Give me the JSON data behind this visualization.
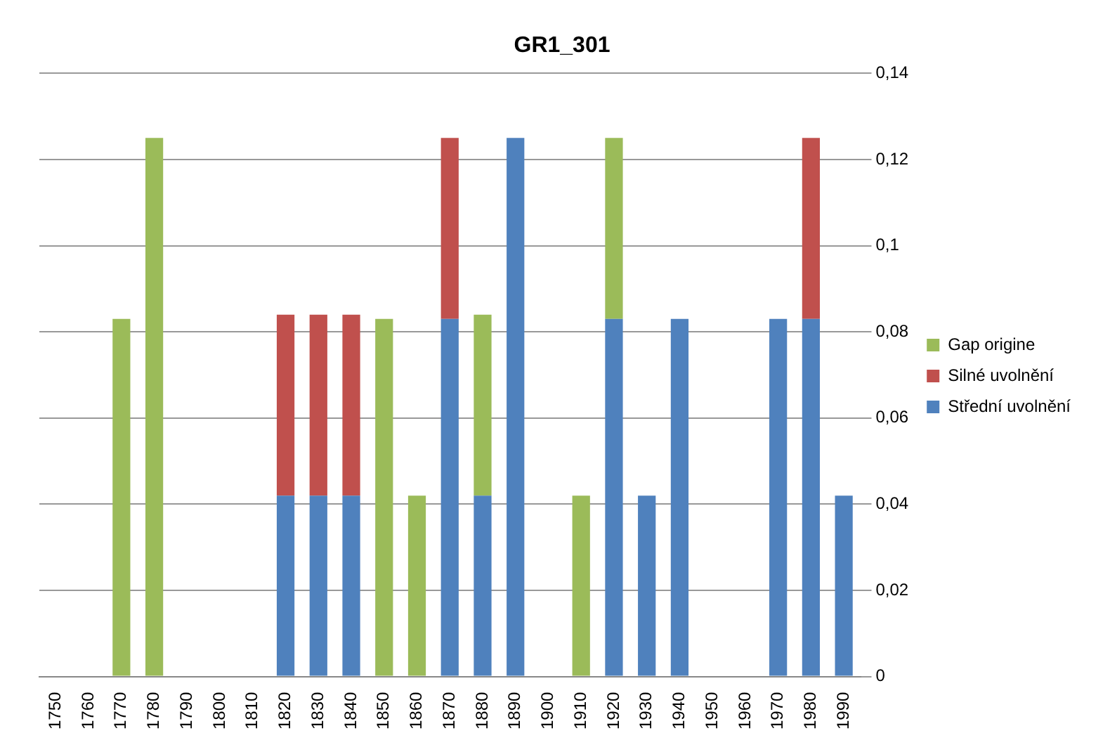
{
  "chart_data": {
    "type": "bar",
    "title": "GR1_301",
    "stacked": true,
    "categories": [
      "1750",
      "1760",
      "1770",
      "1780",
      "1790",
      "1800",
      "1810",
      "1820",
      "1830",
      "1840",
      "1850",
      "1860",
      "1870",
      "1880",
      "1890",
      "1900",
      "1910",
      "1920",
      "1930",
      "1940",
      "1950",
      "1960",
      "1970",
      "1980",
      "1990"
    ],
    "series": [
      {
        "name": "Střední uvolnění",
        "color": "#4f81bd",
        "values": [
          0,
          0,
          0,
          0,
          0,
          0,
          0,
          0.042,
          0.042,
          0.042,
          0,
          0,
          0.083,
          0.042,
          0.125,
          0,
          0,
          0.083,
          0.042,
          0.083,
          0,
          0,
          0.083,
          0.083,
          0.042
        ]
      },
      {
        "name": "Silné uvolnění",
        "color": "#c0504d",
        "values": [
          0,
          0,
          0,
          0,
          0,
          0,
          0,
          0.042,
          0.042,
          0.042,
          0,
          0,
          0.042,
          0,
          0,
          0,
          0,
          0,
          0,
          0,
          0,
          0,
          0,
          0.042,
          0
        ]
      },
      {
        "name": "Gap origine",
        "color": "#9bbb59",
        "values": [
          0,
          0,
          0.083,
          0.125,
          0,
          0,
          0,
          0,
          0,
          0,
          0.083,
          0.042,
          0,
          0.042,
          0,
          0,
          0.042,
          0.042,
          0,
          0,
          0,
          0,
          0,
          0,
          0
        ]
      }
    ],
    "ylim": [
      0,
      0.14
    ],
    "yticks": [
      0,
      {
        "value": 0.02,
        "label": "0,02"
      },
      {
        "value": 0.04,
        "label": "0,04"
      },
      {
        "value": 0.06,
        "label": "0,06"
      },
      {
        "value": 0.08,
        "label": "0,08"
      },
      {
        "value": 0.1,
        "label": "0,1"
      },
      {
        "value": 0.12,
        "label": "0,12"
      },
      {
        "value": 0.14,
        "label": "0,14"
      }
    ],
    "grid": "y",
    "legend": "right"
  }
}
